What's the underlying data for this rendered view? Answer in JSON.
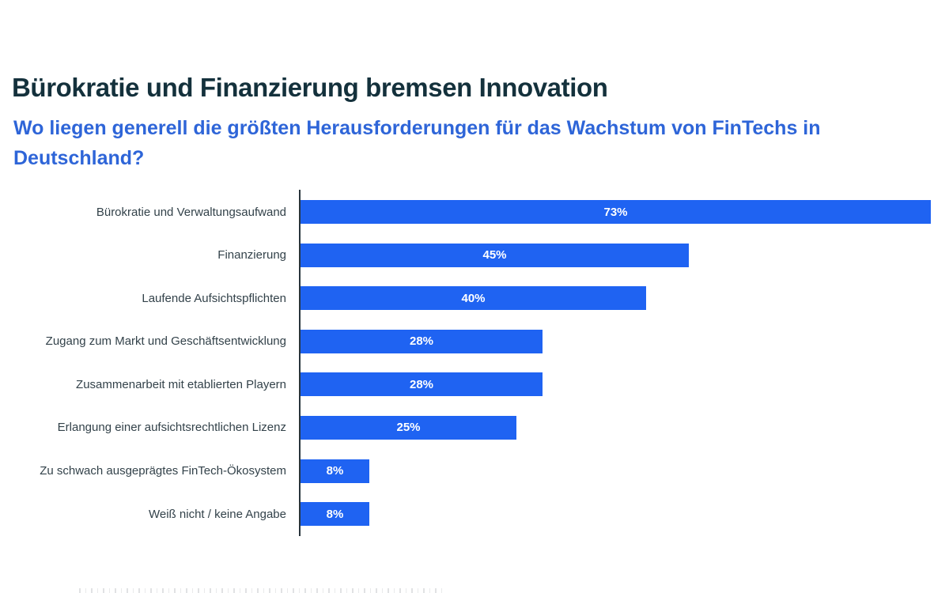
{
  "header": {
    "title": "Bürokratie und Finanzierung bremsen Innovation",
    "subtitle": "Wo liegen generell die größten Herausforderungen für das Wachstum von FinTechs in Deutschland?"
  },
  "colors": {
    "title_text": "#14313c",
    "subtitle_text": "#2e65d8",
    "bar_fill": "#1f63f2",
    "category_label_text": "#33424a",
    "axis_line": "#28343b",
    "value_label_text": "#ffffff",
    "background": "#ffffff"
  },
  "chart_data": {
    "type": "bar",
    "orientation": "horizontal",
    "title": "Bürokratie und Finanzierung bremsen Innovation",
    "subtitle": "Wo liegen generell die größten Herausforderungen für das Wachstum von FinTechs in Deutschland?",
    "categories": [
      "Bürokratie und Verwaltungsaufwand",
      "Finanzierung",
      "Laufende Aufsichtspflichten",
      "Zugang zum Markt und Geschäftsentwicklung",
      "Zusammenarbeit mit etablierten Playern",
      "Erlangung einer aufsichtsrechtlichen Lizenz",
      "Zu schwach ausgeprägtes FinTech-Ökosystem",
      "Weiß nicht / keine Angabe"
    ],
    "values": [
      73,
      45,
      40,
      28,
      28,
      25,
      8,
      8
    ],
    "value_labels": [
      "73%",
      "45%",
      "40%",
      "28%",
      "28%",
      "25%",
      "8%",
      "8%"
    ],
    "value_label_position": "center-of-bar",
    "xlabel": "",
    "ylabel": "",
    "xlim": [
      0,
      73
    ],
    "grid": false,
    "legend": null
  }
}
